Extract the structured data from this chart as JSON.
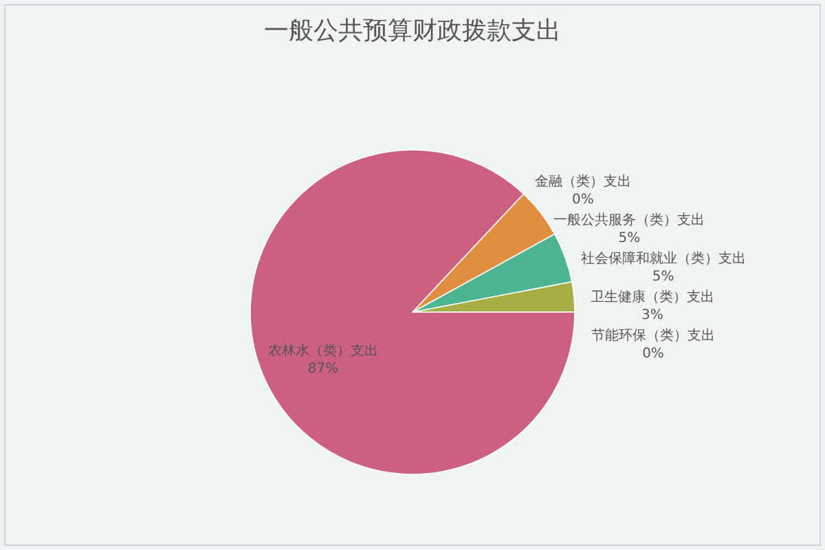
{
  "chart_data": {
    "type": "pie",
    "title": "一般公共预算财政拨款支出",
    "categories": [
      "节能环保（类）支出",
      "卫生健康（类）支出",
      "社会保障和就业（类）支出",
      "一般公共服务（类）支出",
      "金融（类）支出",
      "农林水（类）支出"
    ],
    "values": [
      0,
      3,
      5,
      5,
      0,
      87
    ],
    "colors": [
      "#8e6fc0",
      "#a6ae46",
      "#4db594",
      "#e28e40",
      "#5a8fd1",
      "#cc6080"
    ],
    "value_labels": [
      "0%",
      "3%",
      "5%",
      "5%",
      "0%",
      "87%"
    ]
  }
}
